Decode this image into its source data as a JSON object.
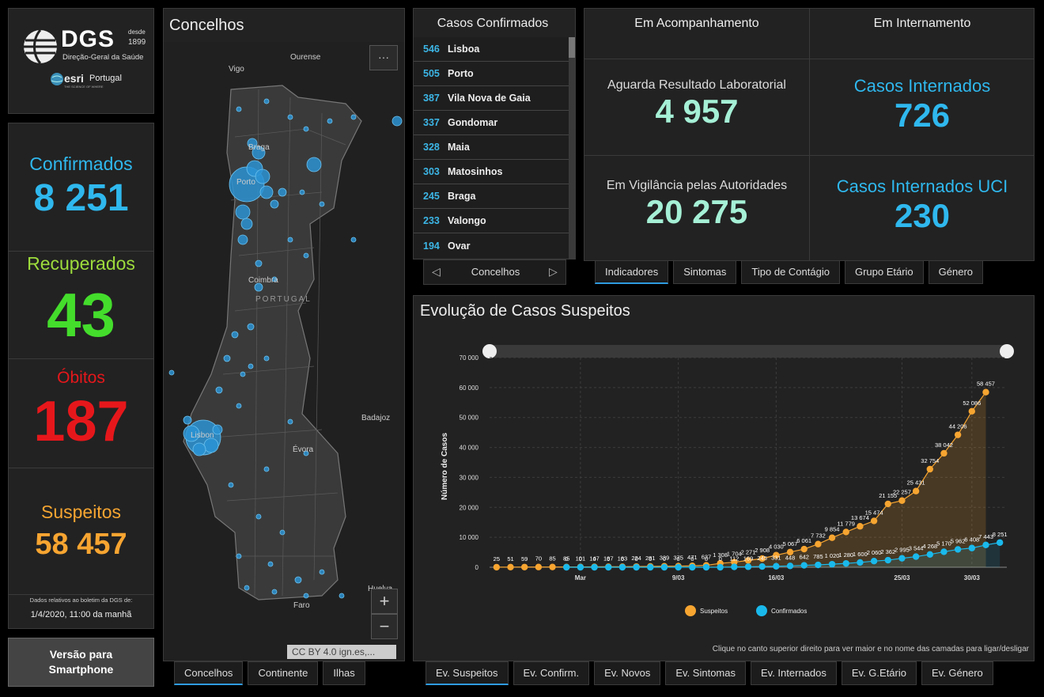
{
  "logo": {
    "name": "DGS",
    "since": "desde",
    "year": "1899",
    "subtitle": "Direção-Geral da Saúde",
    "partner": "esri",
    "partner_sub": "Portugal",
    "partner_tag": "THE SCIENCE OF WHERE"
  },
  "stats": {
    "confirmed": {
      "label": "Confirmados",
      "value": "8 251",
      "color": "#2fb8ee"
    },
    "recovered": {
      "label": "Recuperados",
      "value": "43",
      "color": "#44dd2c"
    },
    "deaths": {
      "label": "Óbitos",
      "value": "187",
      "color": "#e6171b"
    },
    "suspects": {
      "label": "Suspeitos",
      "value": "58 457",
      "color": "#f7a531"
    },
    "bulletin_note": "Dados relativos ao boletim da DGS de:",
    "bulletin_date": "1/4/2020, 11:00 da manhã"
  },
  "smartphone_button": "Versão para Smartphone",
  "map": {
    "title": "Concelhos",
    "attribution": "CC BY 4.0 ign.es,...",
    "menu": "···",
    "zoom_in": "+",
    "zoom_out": "−",
    "places": [
      "Ourense",
      "Vigo",
      "Braga",
      "Porto",
      "Coimbra",
      "PORTUGAL",
      "Badajoz",
      "Évora",
      "Lisbon",
      "Huelva",
      "Faro"
    ],
    "tabs": [
      "Concelhos",
      "Continente",
      "Ilhas"
    ]
  },
  "cases_list": {
    "title": "Casos Confirmados",
    "footer": "Concelhos",
    "rows": [
      {
        "n": "546",
        "c": "Lisboa"
      },
      {
        "n": "505",
        "c": "Porto"
      },
      {
        "n": "387",
        "c": "Vila Nova de Gaia"
      },
      {
        "n": "337",
        "c": "Gondomar"
      },
      {
        "n": "328",
        "c": "Maia"
      },
      {
        "n": "303",
        "c": "Matosinhos"
      },
      {
        "n": "245",
        "c": "Braga"
      },
      {
        "n": "233",
        "c": "Valongo"
      },
      {
        "n": "194",
        "c": "Ovar"
      }
    ]
  },
  "kpis": {
    "h1": "Em Acompanhamento",
    "h2": "Em Internamento",
    "awaiting": {
      "label": "Aguarda Resultado Laboratorial",
      "value": "4 957"
    },
    "vigilance": {
      "label": "Em Vigilância pelas Autoridades",
      "value": "20 275"
    },
    "hospital": {
      "label": "Casos Internados",
      "value": "726"
    },
    "icu": {
      "label": "Casos Internados UCI",
      "value": "230"
    },
    "tabs": [
      "Indicadores",
      "Sintomas",
      "Tipo de Contágio",
      "Grupo Etário",
      "Género"
    ]
  },
  "chart_panel": {
    "title": "Evolução de Casos Suspeitos",
    "hint": "Clique no canto superior direito para ver maior e no nome das camadas para ligar/desligar",
    "tabs": [
      "Ev. Suspeitos",
      "Ev. Confirm.",
      "Ev. Novos",
      "Ev. Sintomas",
      "Ev. Internados",
      "Ev. G.Etário",
      "Ev. Género"
    ]
  },
  "chart_data": {
    "type": "area",
    "ylabel": "Número de Casos",
    "ylim": [
      0,
      70000
    ],
    "yticks": [
      "0",
      "10 000",
      "20 000",
      "30 000",
      "40 000",
      "50 000",
      "60 000",
      "70 000"
    ],
    "xticks": [
      {
        "label": "Mar",
        "day": 6
      },
      {
        "label": "9/03",
        "day": 13
      },
      {
        "label": "16/03",
        "day": 20
      },
      {
        "label": "25/03",
        "day": 29
      },
      {
        "label": "30/03",
        "day": 34
      }
    ],
    "series": [
      {
        "name": "Suspeitos",
        "color": "#f7a531",
        "points": [
          [
            0,
            25,
            "25"
          ],
          [
            1,
            51,
            "51"
          ],
          [
            2,
            59,
            "59"
          ],
          [
            3,
            70,
            "70"
          ],
          [
            4,
            85,
            "85"
          ],
          [
            5,
            85,
            "85"
          ],
          [
            6,
            101,
            "101"
          ],
          [
            7,
            147,
            "147"
          ],
          [
            8,
            187,
            "187"
          ],
          [
            9,
            183,
            "183"
          ],
          [
            10,
            224,
            "224"
          ],
          [
            11,
            281,
            "281"
          ],
          [
            12,
            339,
            "339"
          ],
          [
            13,
            375,
            "375"
          ],
          [
            14,
            471,
            "471"
          ],
          [
            15,
            637,
            "637"
          ],
          [
            16,
            1308,
            "1 308"
          ],
          [
            17,
            1704,
            "1 704"
          ],
          [
            18,
            2271,
            "2 271"
          ],
          [
            19,
            2908,
            "2 908"
          ],
          [
            20,
            4030,
            "4 030"
          ],
          [
            21,
            5067,
            "5 067"
          ],
          [
            22,
            6061,
            "6 061"
          ],
          [
            23,
            7732,
            "7 732"
          ],
          [
            24,
            9854,
            "9 854"
          ],
          [
            25,
            11779,
            "11 779"
          ],
          [
            26,
            13674,
            "13 674"
          ],
          [
            27,
            15474,
            "15 474"
          ],
          [
            28,
            21155,
            "21 155"
          ],
          [
            29,
            22257,
            "22 257"
          ],
          [
            30,
            25431,
            "25 431"
          ],
          [
            31,
            32754,
            "32 754"
          ],
          [
            32,
            38042,
            "38 042"
          ],
          [
            33,
            44206,
            "44 206"
          ],
          [
            34,
            52086,
            "52 086"
          ],
          [
            35,
            58457,
            "58 457"
          ]
        ]
      },
      {
        "name": "Confirmados",
        "color": "#1ab9ec",
        "points": [
          [
            5,
            0,
            "0"
          ],
          [
            6,
            0,
            "0"
          ],
          [
            7,
            0,
            "0"
          ],
          [
            8,
            0,
            "0"
          ],
          [
            9,
            0,
            "0"
          ],
          [
            10,
            0,
            "0"
          ],
          [
            11,
            0,
            "0"
          ],
          [
            12,
            0,
            "0"
          ],
          [
            13,
            0,
            "0"
          ],
          [
            14,
            0,
            "0"
          ],
          [
            15,
            0,
            "0"
          ],
          [
            16,
            0,
            "0"
          ],
          [
            17,
            112,
            "112"
          ],
          [
            18,
            169,
            "169"
          ],
          [
            19,
            245,
            "245"
          ],
          [
            20,
            331,
            "331"
          ],
          [
            21,
            448,
            "448"
          ],
          [
            22,
            642,
            "642"
          ],
          [
            23,
            785,
            "785"
          ],
          [
            24,
            1020,
            "1 020"
          ],
          [
            25,
            1280,
            "1 280"
          ],
          [
            26,
            1600,
            "1 600"
          ],
          [
            27,
            2060,
            "2 060"
          ],
          [
            28,
            2362,
            "2 362"
          ],
          [
            29,
            2995,
            "2 995"
          ],
          [
            30,
            3544,
            "3 544"
          ],
          [
            31,
            4268,
            "4 268"
          ],
          [
            32,
            5170,
            "5 170"
          ],
          [
            33,
            5962,
            "5 962"
          ],
          [
            34,
            6408,
            "6 408"
          ],
          [
            35,
            7443,
            "7 443"
          ],
          [
            36,
            8251,
            "8 251"
          ]
        ]
      }
    ]
  }
}
